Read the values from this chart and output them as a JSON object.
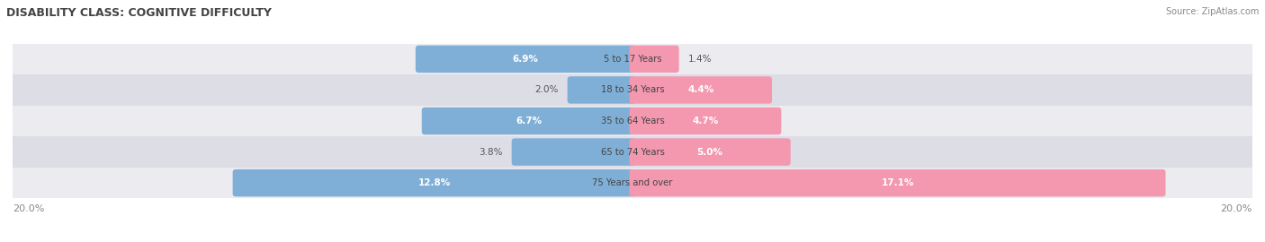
{
  "title": "DISABILITY CLASS: COGNITIVE DIFFICULTY",
  "source": "Source: ZipAtlas.com",
  "categories": [
    "5 to 17 Years",
    "18 to 34 Years",
    "35 to 64 Years",
    "65 to 74 Years",
    "75 Years and over"
  ],
  "male_values": [
    6.9,
    2.0,
    6.7,
    3.8,
    12.8
  ],
  "female_values": [
    1.4,
    4.4,
    4.7,
    5.0,
    17.1
  ],
  "max_value": 20.0,
  "male_color": "#7fafd6",
  "female_color": "#f498b0",
  "row_bg_light": "#ebebf0",
  "row_bg_dark": "#dddde6",
  "title_color": "#444444",
  "source_color": "#888888",
  "center_label_color": "#444444",
  "value_color_outside": "#555555",
  "value_color_inside": "#ffffff",
  "axis_label_color": "#888888",
  "legend_male_color": "#7fafd6",
  "legend_female_color": "#f498b0",
  "inside_threshold": 4.0
}
